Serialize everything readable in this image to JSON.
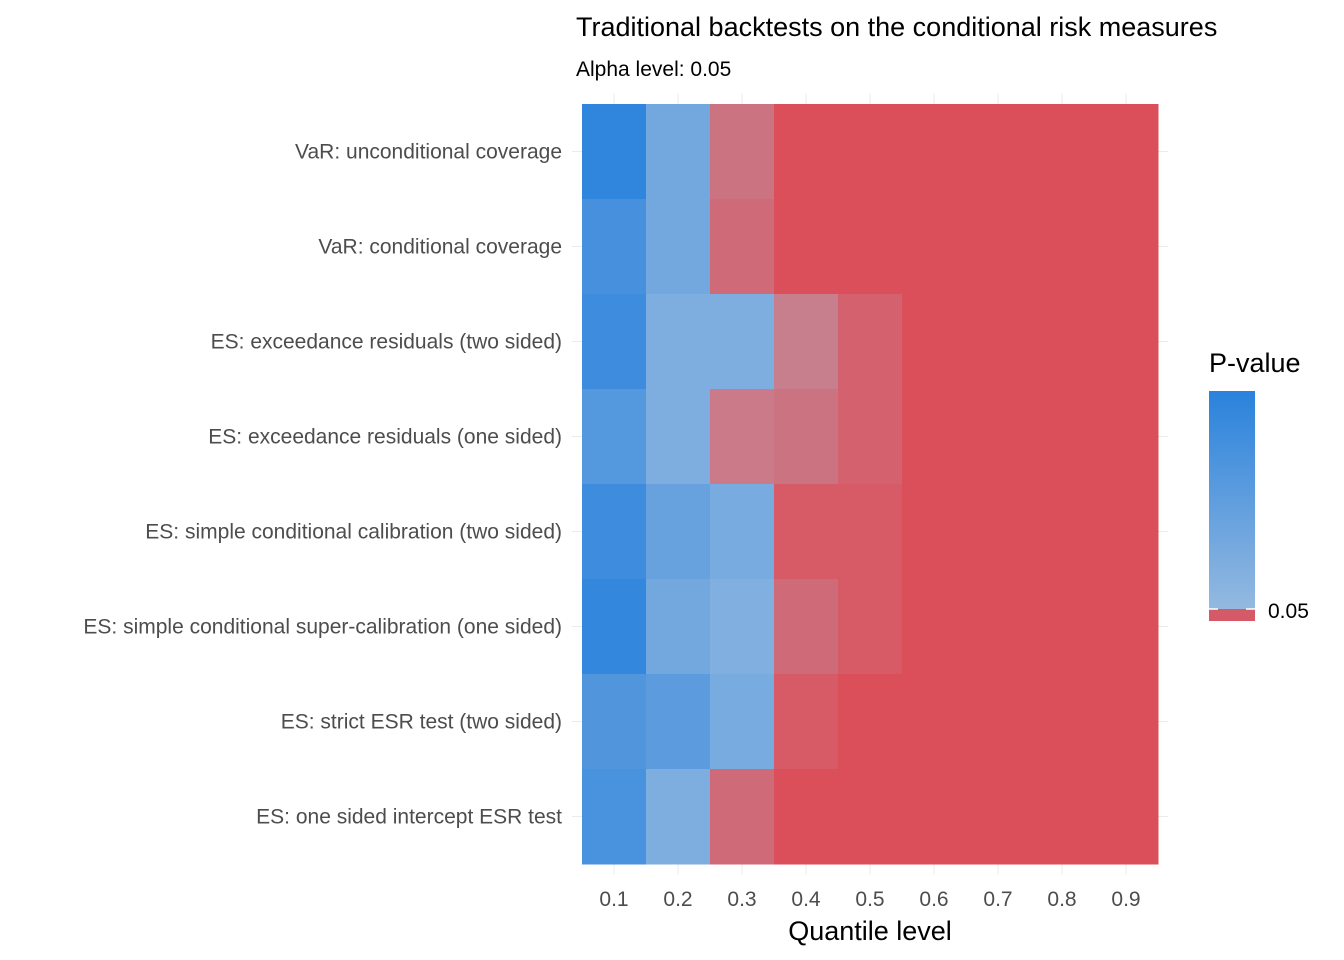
{
  "chart_data": {
    "type": "heatmap",
    "title": "Traditional backtests on the conditional risk measures",
    "subtitle": "Alpha level: 0.05",
    "xlabel": "Quantile level",
    "ylabel": "",
    "x": [
      "0.1",
      "0.2",
      "0.3",
      "0.4",
      "0.5",
      "0.6",
      "0.7",
      "0.8",
      "0.9"
    ],
    "y": [
      "VaR: unconditional coverage",
      "VaR: conditional coverage",
      "ES: exceedance residuals (two sided)",
      "ES: exceedance residuals (one sided)",
      "ES: simple conditional calibration (two sided)",
      "ES: simple conditional super-calibration (one sided)",
      "ES: strict ESR test (two sided)",
      "ES: one sided intercept ESR test"
    ],
    "values": [
      [
        0.95,
        0.35,
        0.03,
        0.0,
        0.0,
        0.0,
        0.0,
        0.0,
        0.0
      ],
      [
        0.75,
        0.35,
        0.02,
        0.0,
        0.0,
        0.0,
        0.0,
        0.0,
        0.0
      ],
      [
        0.82,
        0.25,
        0.25,
        0.049,
        0.01,
        0.0,
        0.0,
        0.0,
        0.0
      ],
      [
        0.62,
        0.25,
        0.04,
        0.03,
        0.01,
        0.0,
        0.0,
        0.0,
        0.0
      ],
      [
        0.82,
        0.45,
        0.3,
        0.005,
        0.005,
        0.0,
        0.0,
        0.0,
        0.0
      ],
      [
        0.92,
        0.35,
        0.22,
        0.02,
        0.005,
        0.0,
        0.0,
        0.0,
        0.0
      ],
      [
        0.65,
        0.55,
        0.3,
        0.005,
        0.0,
        0.0,
        0.0,
        0.0,
        0.0
      ],
      [
        0.72,
        0.25,
        0.02,
        0.0,
        0.0,
        0.0,
        0.0,
        0.0,
        0.0
      ]
    ],
    "alpha": 0.05,
    "legend": {
      "title": "P-value",
      "label": "0.05",
      "placement": "right"
    },
    "colors": {
      "high": "#2a82dc",
      "low_blue": "#94b9e0",
      "red_near_alpha": "#c7808f",
      "red": "#db4f5a"
    },
    "grid": true
  }
}
